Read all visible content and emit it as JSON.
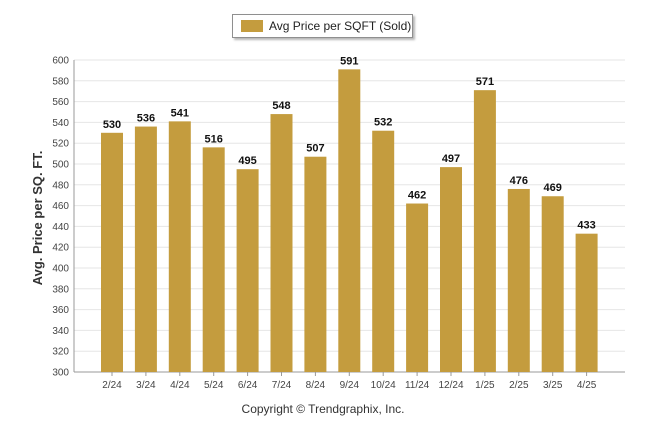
{
  "legend": {
    "label": "Avg Price per SQFT (Sold)"
  },
  "copyright": "Copyright © Trendgraphix, Inc.",
  "colors": {
    "bar": "#c49c3e",
    "grid": "#e6e6e6",
    "axis": "#999999"
  },
  "chart_data": {
    "type": "bar",
    "title": "",
    "xlabel": "",
    "ylabel": "Avg. Price per SQ. FT.",
    "ylim": [
      300,
      600
    ],
    "yticks": [
      300,
      320,
      340,
      360,
      380,
      400,
      420,
      440,
      460,
      480,
      500,
      520,
      540,
      560,
      580,
      600
    ],
    "grid": true,
    "legend_position": "top-center",
    "categories": [
      "2/24",
      "3/24",
      "4/24",
      "5/24",
      "6/24",
      "7/24",
      "8/24",
      "9/24",
      "10/24",
      "11/24",
      "12/24",
      "1/25",
      "2/25",
      "3/25",
      "4/25"
    ],
    "series": [
      {
        "name": "Avg Price per SQFT (Sold)",
        "values": [
          530,
          536,
          541,
          516,
          495,
          548,
          507,
          591,
          532,
          462,
          497,
          571,
          476,
          469,
          433
        ]
      }
    ]
  }
}
